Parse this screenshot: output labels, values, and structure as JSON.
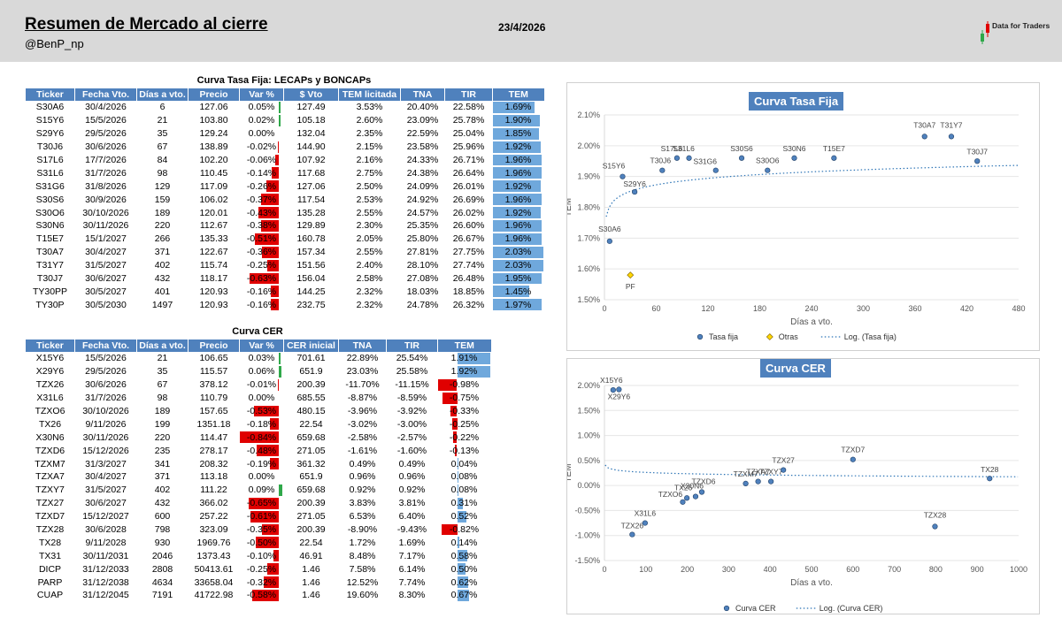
{
  "header": {
    "title": "Resumen de Mercado al cierre",
    "user": "@BenP_np",
    "date": "23/4/2026",
    "logo_text": "Data for Traders"
  },
  "colors": {
    "header_bg": "#d9d9d9",
    "table_header": "#4f81bd",
    "neg_bar": "#e00000",
    "pos_bar": "#2fa84a",
    "tem_bar": "#6fa8dc",
    "point": "#2e5f8a"
  },
  "table1": {
    "title": "Curva Tasa Fija: LECAPs y BONCAPs",
    "columns": [
      "Ticker",
      "Fecha Vto.",
      "Días a vto.",
      "Precio",
      "Var %",
      "$ Vto",
      "TEM licitada",
      "TNA",
      "TIR",
      "TEM"
    ],
    "rows": [
      [
        "S30A6",
        "30/4/2026",
        "6",
        "127.06",
        "0.05%",
        "127.49",
        "3.53%",
        "20.40%",
        "22.58%",
        "1.69%"
      ],
      [
        "S15Y6",
        "15/5/2026",
        "21",
        "103.80",
        "0.02%",
        "105.18",
        "2.60%",
        "23.09%",
        "25.78%",
        "1.90%"
      ],
      [
        "S29Y6",
        "29/5/2026",
        "35",
        "129.24",
        "0.00%",
        "132.04",
        "2.35%",
        "22.59%",
        "25.04%",
        "1.85%"
      ],
      [
        "T30J6",
        "30/6/2026",
        "67",
        "138.89",
        "-0.02%",
        "144.90",
        "2.15%",
        "23.58%",
        "25.96%",
        "1.92%"
      ],
      [
        "S17L6",
        "17/7/2026",
        "84",
        "102.20",
        "-0.06%",
        "107.92",
        "2.16%",
        "24.33%",
        "26.71%",
        "1.96%"
      ],
      [
        "S31L6",
        "31/7/2026",
        "98",
        "110.45",
        "-0.14%",
        "117.68",
        "2.75%",
        "24.38%",
        "26.64%",
        "1.96%"
      ],
      [
        "S31G6",
        "31/8/2026",
        "129",
        "117.09",
        "-0.26%",
        "127.06",
        "2.50%",
        "24.09%",
        "26.01%",
        "1.92%"
      ],
      [
        "S30S6",
        "30/9/2026",
        "159",
        "106.02",
        "-0.37%",
        "117.54",
        "2.53%",
        "24.92%",
        "26.69%",
        "1.96%"
      ],
      [
        "S30O6",
        "30/10/2026",
        "189",
        "120.01",
        "-0.43%",
        "135.28",
        "2.55%",
        "24.57%",
        "26.02%",
        "1.92%"
      ],
      [
        "S30N6",
        "30/11/2026",
        "220",
        "112.67",
        "-0.38%",
        "129.89",
        "2.30%",
        "25.35%",
        "26.60%",
        "1.96%"
      ],
      [
        "T15E7",
        "15/1/2027",
        "266",
        "135.33",
        "-0.51%",
        "160.78",
        "2.05%",
        "25.80%",
        "26.67%",
        "1.96%"
      ],
      [
        "T30A7",
        "30/4/2027",
        "371",
        "122.67",
        "-0.36%",
        "157.34",
        "2.55%",
        "27.81%",
        "27.75%",
        "2.03%"
      ],
      [
        "T31Y7",
        "31/5/2027",
        "402",
        "115.74",
        "-0.25%",
        "151.56",
        "2.40%",
        "28.10%",
        "27.74%",
        "2.03%"
      ],
      [
        "T30J7",
        "30/6/2027",
        "432",
        "118.17",
        "-0.63%",
        "156.04",
        "2.58%",
        "27.08%",
        "26.48%",
        "1.95%"
      ],
      [
        "TY30PP",
        "30/5/2027",
        "401",
        "120.93",
        "-0.16%",
        "144.25",
        "2.32%",
        "18.03%",
        "18.85%",
        "1.45%"
      ],
      [
        "TY30P",
        "30/5/2030",
        "1497",
        "120.93",
        "-0.16%",
        "232.75",
        "2.32%",
        "24.78%",
        "26.32%",
        "1.97%"
      ]
    ]
  },
  "table2": {
    "title": "Curva CER",
    "columns": [
      "Ticker",
      "Fecha Vto.",
      "Días a vto.",
      "Precio",
      "Var %",
      "CER inicial",
      "TNA",
      "TIR",
      "TEM"
    ],
    "rows": [
      [
        "X15Y6",
        "15/5/2026",
        "21",
        "106.65",
        "0.03%",
        "701.61",
        "22.89%",
        "25.54%",
        "1.91%"
      ],
      [
        "X29Y6",
        "29/5/2026",
        "35",
        "115.57",
        "0.06%",
        "651.9",
        "23.03%",
        "25.58%",
        "1.92%"
      ],
      [
        "TZX26",
        "30/6/2026",
        "67",
        "378.12",
        "-0.01%",
        "200.39",
        "-11.70%",
        "-11.15%",
        "-0.98%"
      ],
      [
        "X31L6",
        "31/7/2026",
        "98",
        "110.79",
        "0.00%",
        "685.55",
        "-8.87%",
        "-8.59%",
        "-0.75%"
      ],
      [
        "TZXO6",
        "30/10/2026",
        "189",
        "157.65",
        "-0.53%",
        "480.15",
        "-3.96%",
        "-3.92%",
        "-0.33%"
      ],
      [
        "TX26",
        "9/11/2026",
        "199",
        "1351.18",
        "-0.18%",
        "22.54",
        "-3.02%",
        "-3.00%",
        "-0.25%"
      ],
      [
        "X30N6",
        "30/11/2026",
        "220",
        "114.47",
        "-0.84%",
        "659.68",
        "-2.58%",
        "-2.57%",
        "-0.22%"
      ],
      [
        "TZXD6",
        "15/12/2026",
        "235",
        "278.17",
        "-0.48%",
        "271.05",
        "-1.61%",
        "-1.60%",
        "-0.13%"
      ],
      [
        "TZXM7",
        "31/3/2027",
        "341",
        "208.32",
        "-0.19%",
        "361.32",
        "0.49%",
        "0.49%",
        "0.04%"
      ],
      [
        "TZXA7",
        "30/4/2027",
        "371",
        "113.18",
        "0.00%",
        "651.9",
        "0.96%",
        "0.96%",
        "0.08%"
      ],
      [
        "TZXY7",
        "31/5/2027",
        "402",
        "111.22",
        "0.09%",
        "659.68",
        "0.92%",
        "0.92%",
        "0.08%"
      ],
      [
        "TZX27",
        "30/6/2027",
        "432",
        "366.02",
        "-0.65%",
        "200.39",
        "3.83%",
        "3.81%",
        "0.31%"
      ],
      [
        "TZXD7",
        "15/12/2027",
        "600",
        "257.22",
        "-0.61%",
        "271.05",
        "6.53%",
        "6.40%",
        "0.52%"
      ],
      [
        "TZX28",
        "30/6/2028",
        "798",
        "323.09",
        "-0.35%",
        "200.39",
        "-8.90%",
        "-9.43%",
        "-0.82%"
      ],
      [
        "TX28",
        "9/11/2028",
        "930",
        "1969.76",
        "-0.50%",
        "22.54",
        "1.72%",
        "1.69%",
        "0.14%"
      ],
      [
        "TX31",
        "30/11/2031",
        "2046",
        "1373.43",
        "-0.10%",
        "46.91",
        "8.48%",
        "7.17%",
        "0.58%"
      ],
      [
        "DICP",
        "31/12/2033",
        "2808",
        "50413.61",
        "-0.25%",
        "1.46",
        "7.58%",
        "6.14%",
        "0.50%"
      ],
      [
        "PARP",
        "31/12/2038",
        "4634",
        "33658.04",
        "-0.32%",
        "1.46",
        "12.52%",
        "7.74%",
        "0.62%"
      ],
      [
        "CUAP",
        "31/12/2045",
        "7191",
        "41722.98",
        "-0.58%",
        "1.46",
        "19.60%",
        "8.30%",
        "0.67%"
      ]
    ]
  },
  "chart_data": [
    {
      "type": "scatter",
      "title": "Curva Tasa Fija",
      "xlabel": "Días a vto.",
      "ylabel": "TEM",
      "xlim": [
        0,
        480
      ],
      "ylim": [
        1.5,
        2.1
      ],
      "xticks": [
        0,
        60,
        120,
        180,
        240,
        300,
        360,
        420,
        480
      ],
      "yticks": [
        "1.50%",
        "1.60%",
        "1.70%",
        "1.80%",
        "1.90%",
        "2.00%",
        "2.10%"
      ],
      "legend": [
        "Tasa fija",
        "Otras",
        "Log. (Tasa fija)"
      ],
      "series": [
        {
          "name": "Tasa fija",
          "points": [
            {
              "label": "S30A6",
              "x": 6,
              "y": 1.69
            },
            {
              "label": "S15Y6",
              "x": 21,
              "y": 1.9
            },
            {
              "label": "S29Y6",
              "x": 35,
              "y": 1.85
            },
            {
              "label": "T30J6",
              "x": 67,
              "y": 1.92
            },
            {
              "label": "S17L6",
              "x": 84,
              "y": 1.96
            },
            {
              "label": "S31L6",
              "x": 98,
              "y": 1.96
            },
            {
              "label": "S31G6",
              "x": 129,
              "y": 1.92
            },
            {
              "label": "S30S6",
              "x": 159,
              "y": 1.96
            },
            {
              "label": "S30O6",
              "x": 189,
              "y": 1.92
            },
            {
              "label": "S30N6",
              "x": 220,
              "y": 1.96
            },
            {
              "label": "T15E7",
              "x": 266,
              "y": 1.96
            },
            {
              "label": "T30A7",
              "x": 371,
              "y": 2.03
            },
            {
              "label": "T31Y7",
              "x": 402,
              "y": 2.03
            },
            {
              "label": "T30J7",
              "x": 432,
              "y": 1.95
            }
          ]
        },
        {
          "name": "Otras",
          "points": [
            {
              "label": "PF",
              "x": 30,
              "y": 1.58
            }
          ]
        }
      ],
      "trend": {
        "name": "Log. (Tasa fija)",
        "a": 1.7486,
        "b": 0.0304
      }
    },
    {
      "type": "scatter",
      "title": "Curva CER",
      "xlabel": "Días a vto.",
      "ylabel": "TEM",
      "xlim": [
        0,
        1000
      ],
      "ylim": [
        -1.5,
        2.0
      ],
      "xticks": [
        0,
        100,
        200,
        300,
        400,
        500,
        600,
        700,
        800,
        900,
        1000
      ],
      "yticks": [
        "-1.50%",
        "-1.00%",
        "-0.50%",
        "0.00%",
        "0.50%",
        "1.00%",
        "1.50%",
        "2.00%"
      ],
      "legend": [
        "Curva CER",
        "Log. (Curva CER)"
      ],
      "series": [
        {
          "name": "Curva CER",
          "points": [
            {
              "label": "X15Y6",
              "x": 21,
              "y": 1.91
            },
            {
              "label": "X29Y6",
              "x": 35,
              "y": 1.92
            },
            {
              "label": "TZX26",
              "x": 67,
              "y": -0.98
            },
            {
              "label": "X31L6",
              "x": 98,
              "y": -0.75
            },
            {
              "label": "TZXO6",
              "x": 189,
              "y": -0.33
            },
            {
              "label": "TX26",
              "x": 199,
              "y": -0.25
            },
            {
              "label": "X30N6",
              "x": 220,
              "y": -0.22
            },
            {
              "label": "TZXD6",
              "x": 235,
              "y": -0.13
            },
            {
              "label": "TZXM7",
              "x": 341,
              "y": 0.04
            },
            {
              "label": "TZXA7",
              "x": 371,
              "y": 0.08
            },
            {
              "label": "TZXY7",
              "x": 402,
              "y": 0.08
            },
            {
              "label": "TZX27",
              "x": 432,
              "y": 0.31
            },
            {
              "label": "TZXD7",
              "x": 600,
              "y": 0.52
            },
            {
              "label": "TZX28",
              "x": 798,
              "y": -0.82
            },
            {
              "label": "TX28",
              "x": 930,
              "y": 0.14
            }
          ]
        }
      ],
      "trend": {
        "name": "Log. (Curva CER)",
        "a": 0.437,
        "b": -0.038
      }
    }
  ]
}
